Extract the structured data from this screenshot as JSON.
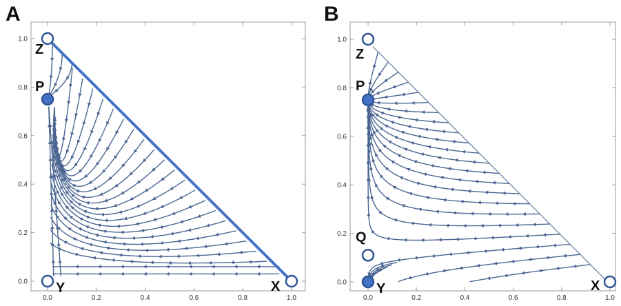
{
  "chart_data": [
    {
      "type": "stream",
      "panel_label": "A",
      "xlim": [
        0,
        1
      ],
      "ylim": [
        0,
        1
      ],
      "x_ticks": [
        "0.0",
        "0.2",
        "0.4",
        "0.6",
        "0.8",
        "1.0"
      ],
      "y_ticks": [
        "0.0",
        "0.2",
        "0.4",
        "0.6",
        "0.8",
        "1.0"
      ],
      "grid": false,
      "accent_color": "#4472C4",
      "stream_color": "#4a6591",
      "highlighted_edge": {
        "from": [
          0,
          1
        ],
        "to": [
          1,
          0
        ]
      },
      "points": [
        {
          "label": "Z",
          "x": 0.0,
          "y": 1.0,
          "filled": false
        },
        {
          "label": "P",
          "x": 0.0,
          "y": 0.75,
          "filled": true
        },
        {
          "label": "Y",
          "x": 0.0,
          "y": 0.0,
          "filled": false
        },
        {
          "label": "X",
          "x": 1.0,
          "y": 0.0,
          "filled": false
        }
      ]
    },
    {
      "type": "stream",
      "panel_label": "B",
      "xlim": [
        0,
        1
      ],
      "ylim": [
        0,
        1
      ],
      "x_ticks": [
        "0.0",
        "0.2",
        "0.4",
        "0.6",
        "0.8",
        "1.0"
      ],
      "y_ticks": [
        "0.0",
        "0.2",
        "0.4",
        "0.6",
        "0.8",
        "1.0"
      ],
      "grid": false,
      "accent_color": "#4472C4",
      "stream_color": "#4a6591",
      "highlighted_edge": null,
      "points": [
        {
          "label": "Z",
          "x": 0.0,
          "y": 1.0,
          "filled": false
        },
        {
          "label": "P",
          "x": 0.0,
          "y": 0.75,
          "filled": true
        },
        {
          "label": "Q",
          "x": 0.0,
          "y": 0.11,
          "filled": false
        },
        {
          "label": "Y",
          "x": 0.0,
          "y": 0.0,
          "filled": true
        },
        {
          "label": "X",
          "x": 1.0,
          "y": 0.0,
          "filled": false
        }
      ]
    }
  ]
}
